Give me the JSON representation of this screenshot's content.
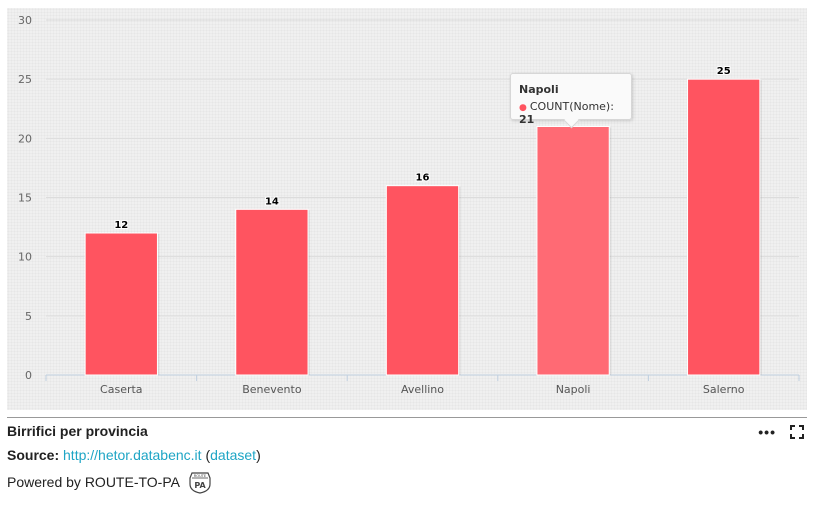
{
  "chart_data": {
    "type": "bar",
    "categories": [
      "Caserta",
      "Benevento",
      "Avellino",
      "Napoli",
      "Salerno"
    ],
    "values": [
      12,
      14,
      16,
      21,
      25
    ],
    "title": "Birrifici per provincia",
    "xlabel": "",
    "ylabel": "",
    "ylim": [
      0,
      30
    ],
    "yticks": [
      0,
      5,
      10,
      15,
      20,
      25,
      30
    ],
    "grid": true,
    "bar_color": "#ff5460",
    "highlight_color": "#ff6a74",
    "highlighted_category": "Napoli"
  },
  "tooltip": {
    "title": "Napoli",
    "series_label": "COUNT(Nome):",
    "value": "21"
  },
  "footer": {
    "title": "Birrifici per provincia",
    "source_label": "Source:",
    "source_link": "http://hetor.databenc.it",
    "open_paren": "(",
    "dataset_link": "dataset",
    "close_paren": ")",
    "powered_by": "Powered by ROUTE-TO-PA",
    "logo_top": "ROUTE",
    "logo_bottom": "PA"
  },
  "icons": {
    "more": "more-horizontal-icon",
    "fullscreen": "fullscreen-icon"
  }
}
